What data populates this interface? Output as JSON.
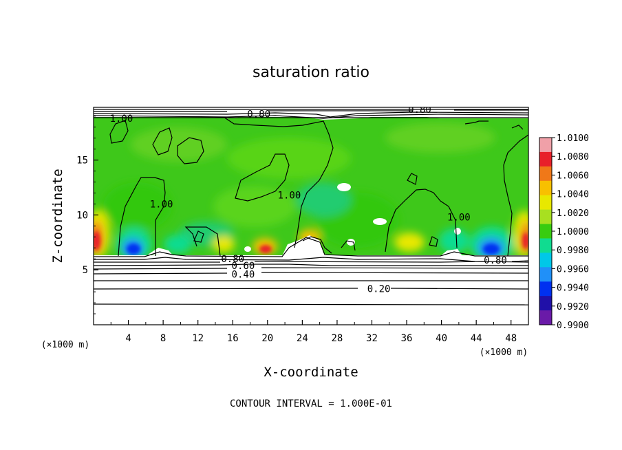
{
  "chart_data": {
    "type": "heatmap",
    "title": "saturation ratio",
    "xlabel": "X-coordinate",
    "ylabel": "Z-coordinate",
    "x_unit": "(×1000 m)",
    "y_unit": "(×1000 m)",
    "xlim": [
      0,
      50
    ],
    "ylim": [
      0,
      19.8
    ],
    "x_ticks": [
      4,
      8,
      12,
      16,
      20,
      24,
      28,
      32,
      36,
      40,
      44,
      48
    ],
    "y_ticks": [
      5,
      10,
      15
    ],
    "colorbar": {
      "min": 0.99,
      "max": 1.01,
      "tick_labels": [
        "1.0100",
        "1.0080",
        "1.0060",
        "1.0040",
        "1.0020",
        "1.0000",
        "0.9980",
        "0.9960",
        "0.9940",
        "0.9920",
        "0.9900"
      ],
      "colors": [
        "#f0a0a8",
        "#e8202a",
        "#f07818",
        "#f8c000",
        "#e8e800",
        "#a8e020",
        "#38cc10",
        "#10dc90",
        "#00c8e8",
        "#2090f8",
        "#0030f0",
        "#2010a8",
        "#6a1aa8"
      ]
    },
    "contour_labels": [
      {
        "text": "1.00",
        "x": 3.2,
        "z": 18.8
      },
      {
        "text": "0.80",
        "x": 19.0,
        "z": 19.2
      },
      {
        "text": "0.80",
        "x": 37.5,
        "z": 19.6
      },
      {
        "text": "1.00",
        "x": 7.8,
        "z": 11.0
      },
      {
        "text": "1.00",
        "x": 22.5,
        "z": 11.8
      },
      {
        "text": "1.00",
        "x": 42.0,
        "z": 9.8
      },
      {
        "text": "0.80",
        "x": 16.0,
        "z": 6.0
      },
      {
        "text": "0.60",
        "x": 17.2,
        "z": 5.4
      },
      {
        "text": "0.40",
        "x": 17.2,
        "z": 4.6
      },
      {
        "text": "0.20",
        "x": 32.8,
        "z": 3.3
      },
      {
        "text": "0.80",
        "x": 46.2,
        "z": 5.9
      }
    ],
    "contour_interval_text": "CONTOUR INTERVAL = 1.000E-01"
  }
}
